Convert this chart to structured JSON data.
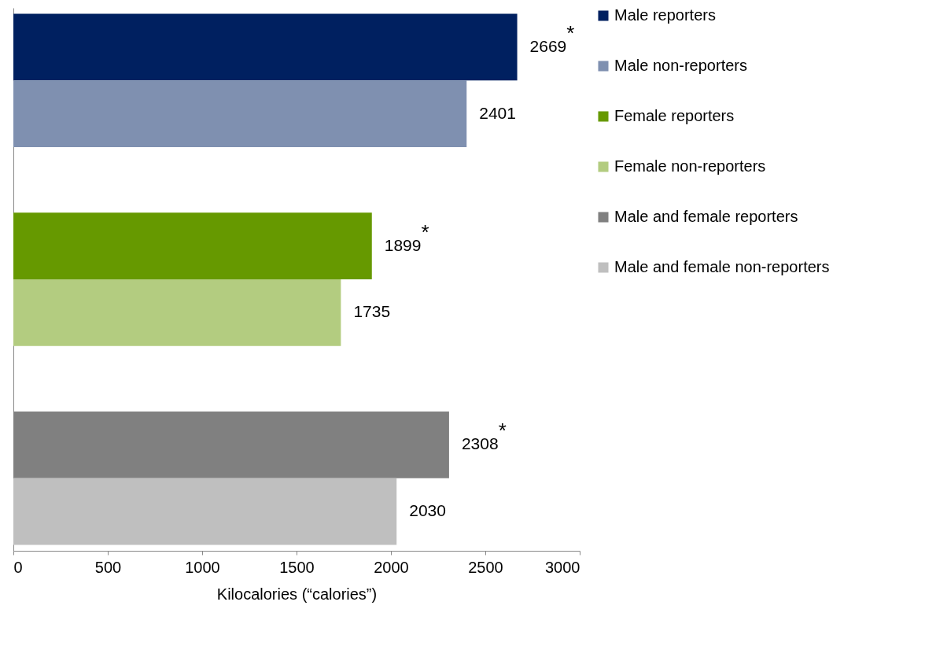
{
  "chart_data": {
    "type": "bar",
    "orientation": "horizontal",
    "xlabel": "Kilocalories (“calories”)",
    "categories": [
      null,
      null,
      null
    ],
    "xlim": [
      0,
      3000
    ],
    "xticks": [
      0,
      500,
      1000,
      1500,
      2000,
      2500,
      3000
    ],
    "grid": false,
    "legend": "right",
    "series": [
      {
        "name": "Male reporters",
        "color": "#002060",
        "values": [
          2669,
          null,
          null
        ],
        "value_labels": [
          "2669$^{*}$",
          null,
          null
        ]
      },
      {
        "name": "Male non-reporters",
        "color": "#7f90b0",
        "values": [
          2401,
          null,
          null
        ],
        "value_labels": [
          "2401",
          null,
          null
        ]
      },
      {
        "name": "Female reporters",
        "color": "#669900",
        "values": [
          null,
          1899,
          null
        ],
        "value_labels": [
          null,
          "1899$^{*}$",
          null
        ]
      },
      {
        "name": "Female non-reporters",
        "color": "#b3cc80",
        "values": [
          null,
          1735,
          null
        ],
        "value_labels": [
          null,
          "1735",
          null
        ]
      },
      {
        "name": "Male and female reporters",
        "color": "#808080",
        "values": [
          null,
          null,
          2308
        ],
        "value_labels": [
          null,
          null,
          "2308$^{*}$"
        ]
      },
      {
        "name": "Male and female non-reporters",
        "color": "#bfbfbf",
        "values": [
          null,
          null,
          2030
        ],
        "value_labels": [
          null,
          null,
          "2030"
        ]
      }
    ]
  }
}
